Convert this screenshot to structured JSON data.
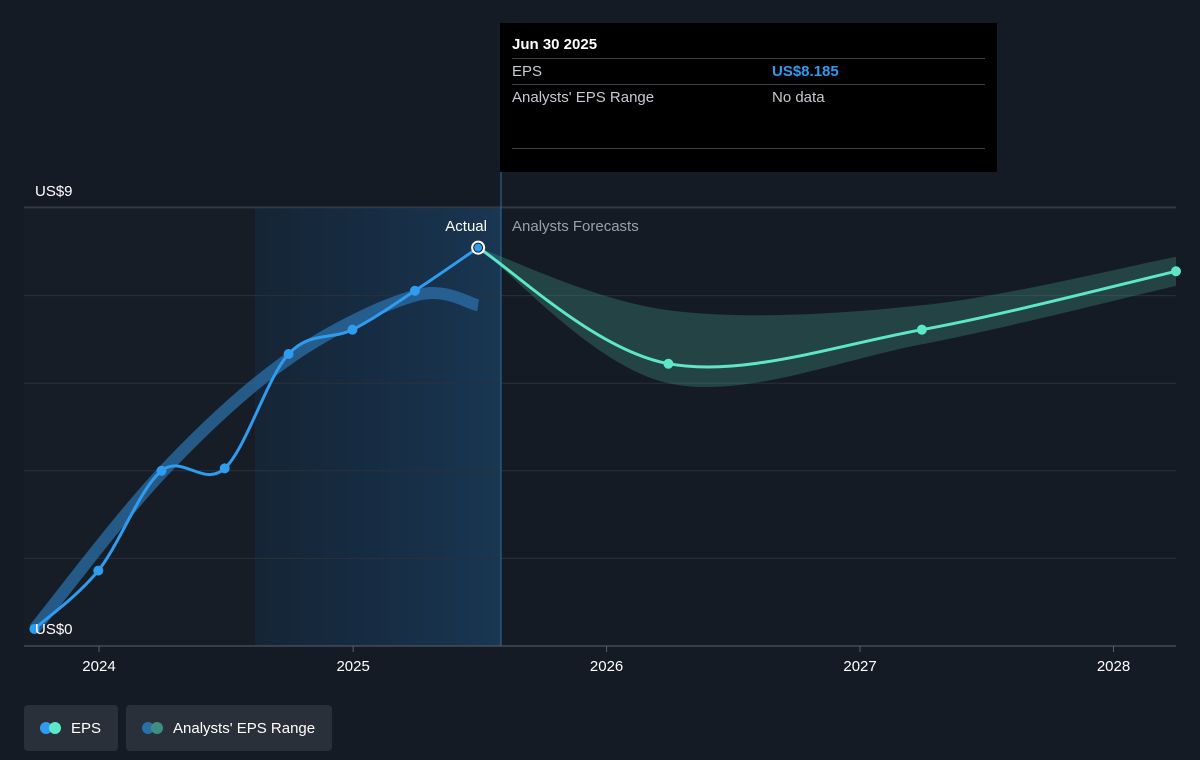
{
  "tooltip": {
    "date": "Jun 30 2025",
    "rows": [
      {
        "label": "EPS",
        "value": "US$8.185"
      },
      {
        "label": "Analysts' EPS Range",
        "value": "No data"
      }
    ]
  },
  "markers": {
    "actual": "Actual",
    "forecast": "Analysts Forecasts"
  },
  "legend": [
    {
      "label": "EPS",
      "colors": [
        "#2f9cf0",
        "#5ee6c9"
      ]
    },
    {
      "label": "Analysts' EPS Range",
      "colors": [
        "#2b6fa8",
        "#3e8e84"
      ]
    }
  ],
  "colors": {
    "eps_actual": "#2f9cf0",
    "eps_forecast": "#5ee6c9",
    "range_actual": "#2b6fa8",
    "range_forecast": "#3e8e84",
    "background": "#151b24"
  },
  "chart_data": {
    "type": "line",
    "y_tick_labels": [
      "US$9",
      "US$0"
    ],
    "ylim": [
      0,
      9
    ],
    "x_tick_labels": [
      "2024",
      "2025",
      "2026",
      "2027",
      "2028"
    ],
    "xlim": [
      "2023-09-15",
      "2028-03-31"
    ],
    "highlight_date": "2025-06-30",
    "grid": true,
    "series": [
      {
        "name": "EPS",
        "segment": "actual",
        "points": [
          {
            "x": "2023-09-30",
            "y": 0.35
          },
          {
            "x": "2023-12-31",
            "y": 1.55
          },
          {
            "x": "2024-03-31",
            "y": 3.6
          },
          {
            "x": "2024-06-30",
            "y": 3.65
          },
          {
            "x": "2024-09-30",
            "y": 6.0
          },
          {
            "x": "2024-12-31",
            "y": 6.5
          },
          {
            "x": "2025-03-31",
            "y": 7.3
          },
          {
            "x": "2025-06-30",
            "y": 8.185
          }
        ]
      },
      {
        "name": "EPS",
        "segment": "forecast",
        "points": [
          {
            "x": "2025-06-30",
            "y": 8.185
          },
          {
            "x": "2026-03-31",
            "y": 5.8
          },
          {
            "x": "2027-03-31",
            "y": 6.5
          },
          {
            "x": "2028-03-31",
            "y": 7.7
          }
        ]
      },
      {
        "name": "Analysts' EPS Range",
        "segment": "forecast",
        "points": [
          {
            "x": "2025-06-30",
            "low": 8.185,
            "high": 8.185
          },
          {
            "x": "2026-03-31",
            "low": 5.4,
            "high": 6.9
          },
          {
            "x": "2027-03-31",
            "low": 6.2,
            "high": 7.0
          },
          {
            "x": "2028-03-31",
            "low": 7.4,
            "high": 8.0
          }
        ]
      }
    ]
  }
}
